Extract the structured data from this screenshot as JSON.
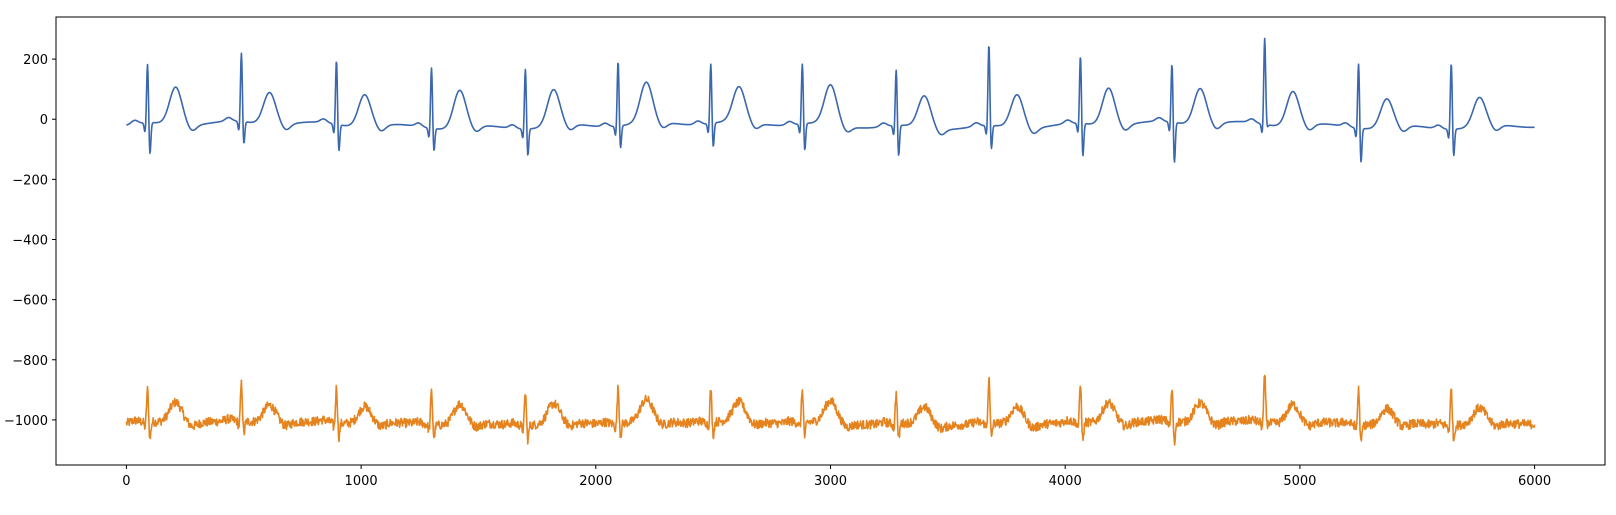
{
  "chart_data": {
    "type": "line",
    "title": "",
    "xlabel": "",
    "ylabel": "",
    "xlim": [
      -300,
      6300
    ],
    "ylim": [
      -1150,
      340
    ],
    "x_ticks": [
      0,
      1000,
      2000,
      3000,
      4000,
      5000,
      6000
    ],
    "x_tick_labels": [
      "0",
      "1000",
      "2000",
      "3000",
      "4000",
      "5000",
      "6000"
    ],
    "y_ticks": [
      200,
      0,
      -200,
      -400,
      -600,
      -800,
      -1000
    ],
    "y_tick_labels": [
      "200",
      "0",
      "−200",
      "−400",
      "−600",
      "−800",
      "−1000"
    ],
    "grid": false,
    "legend": "none",
    "x_range": [
      0,
      6000
    ],
    "beats": [
      {
        "r": 90,
        "rAmp": 190,
        "sAmp": -125,
        "tAmp": 100
      },
      {
        "r": 490,
        "rAmp": 222,
        "sAmp": -95,
        "tAmp": 82
      },
      {
        "r": 895,
        "rAmp": 208,
        "sAmp": -108,
        "tAmp": 82
      },
      {
        "r": 1300,
        "rAmp": 196,
        "sAmp": -95,
        "tAmp": 100
      },
      {
        "r": 1700,
        "rAmp": 194,
        "sAmp": -110,
        "tAmp": 95
      },
      {
        "r": 2095,
        "rAmp": 210,
        "sAmp": -95,
        "tAmp": 108
      },
      {
        "r": 2490,
        "rAmp": 192,
        "sAmp": -100,
        "tAmp": 90
      },
      {
        "r": 2880,
        "rAmp": 194,
        "sAmp": -110,
        "tAmp": 105
      },
      {
        "r": 3280,
        "rAmp": 180,
        "sAmp": -122,
        "tAmp": 80
      },
      {
        "r": 3675,
        "rAmp": 265,
        "sAmp": -100,
        "tAmp": 85
      },
      {
        "r": 4065,
        "rAmp": 220,
        "sAmp": -130,
        "tAmp": 100
      },
      {
        "r": 4455,
        "rAmp": 190,
        "sAmp": -155,
        "tAmp": 95
      },
      {
        "r": 4850,
        "rAmp": 278,
        "sAmp": -25,
        "tAmp": 90
      },
      {
        "r": 5250,
        "rAmp": 210,
        "sAmp": -135,
        "tAmp": 70
      },
      {
        "r": 5645,
        "rAmp": 215,
        "sAmp": -110,
        "tAmp": 70
      }
    ],
    "series": [
      {
        "color": "#3a67ad",
        "offset": 0,
        "noise": 0
      },
      {
        "color": "#e5831f",
        "offset": -1000,
        "noise": 15
      }
    ]
  }
}
